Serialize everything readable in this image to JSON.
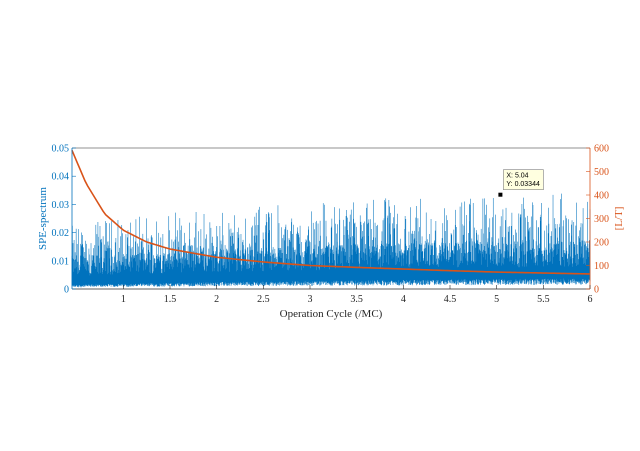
{
  "chart_data": {
    "type": "line",
    "xlabel": "Operation Cycle (/MC)",
    "ylabel_left": "SPE-spectrum",
    "ylabel_right": "[L/T]",
    "xlim": [
      0.45,
      6
    ],
    "ylim_left": [
      0,
      0.05
    ],
    "ylim_right": [
      0,
      600
    ],
    "x_ticks": [
      "1",
      "1.5",
      "2",
      "2.5",
      "3",
      "3.5",
      "4",
      "4.5",
      "5",
      "5.5",
      "6"
    ],
    "y_left_ticks": [
      "0",
      "0.01",
      "0.02",
      "0.03",
      "0.04",
      "0.05"
    ],
    "y_right_ticks": [
      "0",
      "100",
      "200",
      "300",
      "400",
      "500",
      "600"
    ],
    "grid": false,
    "series": [
      {
        "axis": "left",
        "color": "#0072bd",
        "style": "dense-spectrum",
        "x_range": [
          0.45,
          6
        ],
        "baseline_trend": [
          [
            0.45,
            0.0015
          ],
          [
            2,
            0.0025
          ],
          [
            4,
            0.0032
          ],
          [
            6,
            0.0038
          ]
        ],
        "envelope_trend": [
          [
            0.45,
            0.022
          ],
          [
            2,
            0.026
          ],
          [
            4,
            0.03
          ],
          [
            6,
            0.031
          ]
        ],
        "peak_max": 0.035
      },
      {
        "axis": "right",
        "color": "#d95319",
        "style": "decay-curve",
        "x": [
          0.45,
          0.6,
          0.8,
          1.0,
          1.25,
          1.5,
          2.0,
          2.5,
          3.0,
          3.5,
          4.0,
          4.5,
          5.0,
          5.5,
          6.0
        ],
        "y": [
          590,
          450,
          320,
          250,
          200,
          170,
          135,
          115,
          100,
          92,
          85,
          78,
          72,
          68,
          64
        ]
      }
    ],
    "annotation": {
      "x": 5.04,
      "y": 0.03344,
      "x_text": "X: 5.04",
      "y_text": "Y: 0.03344"
    }
  }
}
